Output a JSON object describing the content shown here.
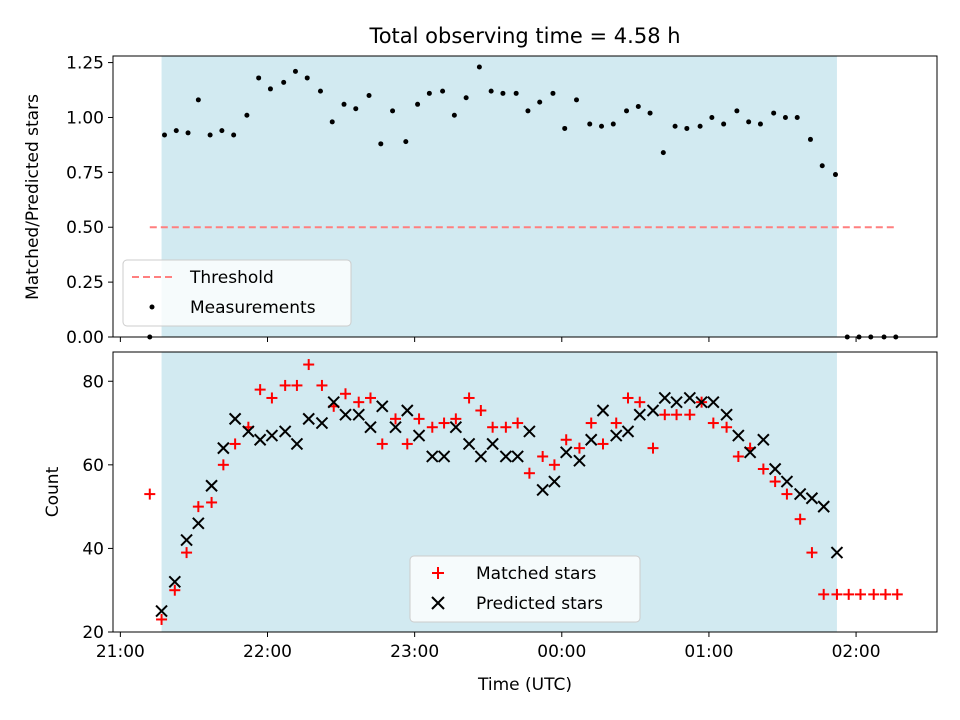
{
  "chart_data": [
    {
      "type": "scatter",
      "title": "Total observing time = 4.58 h",
      "ylabel": "Matched/Predicted stars",
      "xlabel": "",
      "ylim": [
        0,
        1.28
      ],
      "yticks": [
        "0.00",
        "0.25",
        "0.50",
        "0.75",
        "1.00",
        "1.25"
      ],
      "ytick_values": [
        0,
        0.25,
        0.5,
        0.75,
        1.0,
        1.25
      ],
      "x_range_hours": [
        20.95,
        26.55
      ],
      "xticks_hours": [
        21,
        22,
        23,
        24,
        25,
        26
      ],
      "shaded_interval_hours": [
        21.28,
        25.87
      ],
      "threshold": 0.5,
      "threshold_x_hours": [
        21.2,
        26.27
      ],
      "grid": false,
      "legend": {
        "placement": "lower-left",
        "entries": [
          "Threshold",
          "Measurements"
        ]
      },
      "series": [
        {
          "name": "Measurements",
          "x": [
            21.2,
            21.3,
            21.38,
            21.46,
            21.53,
            21.61,
            21.69,
            21.77,
            21.86,
            21.94,
            22.02,
            22.11,
            22.19,
            22.27,
            22.36,
            22.44,
            22.52,
            22.6,
            22.69,
            22.77,
            22.85,
            22.94,
            23.02,
            23.1,
            23.19,
            23.27,
            23.35,
            23.44,
            23.52,
            23.6,
            23.69,
            23.77,
            23.85,
            23.94,
            24.02,
            24.1,
            24.19,
            24.27,
            24.35,
            24.44,
            24.52,
            24.6,
            24.69,
            24.77,
            24.85,
            24.94,
            25.02,
            25.1,
            25.19,
            25.27,
            25.35,
            25.44,
            25.52,
            25.6,
            25.69,
            25.77,
            25.86,
            25.94,
            26.02,
            26.1,
            26.19,
            26.27
          ],
          "values": [
            0.0,
            0.92,
            0.94,
            0.93,
            1.08,
            0.92,
            0.94,
            0.92,
            1.01,
            1.18,
            1.13,
            1.16,
            1.21,
            1.18,
            1.12,
            0.98,
            1.06,
            1.04,
            1.1,
            0.88,
            1.03,
            0.89,
            1.06,
            1.11,
            1.12,
            1.01,
            1.09,
            1.23,
            1.12,
            1.11,
            1.11,
            1.03,
            1.07,
            1.11,
            0.95,
            1.08,
            0.97,
            0.96,
            0.97,
            1.03,
            1.05,
            1.02,
            0.84,
            0.96,
            0.95,
            0.96,
            1.0,
            0.97,
            1.03,
            0.98,
            0.97,
            1.02,
            1.0,
            1.0,
            0.9,
            0.78,
            0.74,
            0.0,
            0.0,
            0.0,
            0.0,
            0.0
          ]
        }
      ]
    },
    {
      "type": "scatter",
      "title": "",
      "ylabel": "Count",
      "xlabel": "Time (UTC)",
      "ylim": [
        20,
        87
      ],
      "yticks": [
        "20",
        "40",
        "60",
        "80"
      ],
      "ytick_values": [
        20,
        40,
        60,
        80
      ],
      "x_range_hours": [
        20.95,
        26.55
      ],
      "xticks": [
        "21:00",
        "22:00",
        "23:00",
        "00:00",
        "01:00",
        "02:00"
      ],
      "xticks_hours": [
        21,
        22,
        23,
        24,
        25,
        26
      ],
      "shaded_interval_hours": [
        21.28,
        25.87
      ],
      "grid": false,
      "legend": {
        "placement": "bottom-center",
        "entries": [
          "Matched stars",
          "Predicted stars"
        ]
      },
      "series": [
        {
          "name": "Matched stars",
          "color": "#ff0000",
          "marker": "plus",
          "x": [
            21.2,
            21.28,
            21.37,
            21.45,
            21.53,
            21.62,
            21.7,
            21.78,
            21.87,
            21.95,
            22.03,
            22.12,
            22.2,
            22.28,
            22.37,
            22.45,
            22.53,
            22.62,
            22.7,
            22.78,
            22.87,
            22.95,
            23.03,
            23.12,
            23.2,
            23.28,
            23.37,
            23.45,
            23.53,
            23.62,
            23.7,
            23.78,
            23.87,
            23.95,
            24.03,
            24.12,
            24.2,
            24.28,
            24.37,
            24.45,
            24.53,
            24.62,
            24.7,
            24.78,
            24.87,
            24.95,
            25.03,
            25.12,
            25.2,
            25.28,
            25.37,
            25.45,
            25.53,
            25.62,
            25.7,
            25.78,
            25.87,
            25.95,
            26.03,
            26.12,
            26.2,
            26.28
          ],
          "values": [
            53,
            23,
            30,
            39,
            50,
            51,
            60,
            65,
            69,
            78,
            76,
            79,
            79,
            84,
            79,
            74,
            77,
            75,
            76,
            65,
            71,
            65,
            71,
            69,
            70,
            71,
            76,
            73,
            69,
            69,
            70,
            58,
            62,
            60,
            66,
            64,
            70,
            65,
            70,
            76,
            75,
            64,
            72,
            72,
            72,
            75,
            70,
            69,
            62,
            64,
            59,
            56,
            53,
            47,
            39,
            29,
            29,
            29,
            29,
            29,
            29,
            29
          ]
        },
        {
          "name": "Predicted stars",
          "color": "#000000",
          "marker": "x",
          "x": [
            21.28,
            21.37,
            21.45,
            21.53,
            21.62,
            21.7,
            21.78,
            21.87,
            21.95,
            22.03,
            22.12,
            22.2,
            22.28,
            22.37,
            22.45,
            22.53,
            22.62,
            22.7,
            22.78,
            22.87,
            22.95,
            23.03,
            23.12,
            23.2,
            23.28,
            23.37,
            23.45,
            23.53,
            23.62,
            23.7,
            23.78,
            23.87,
            23.95,
            24.03,
            24.12,
            24.2,
            24.28,
            24.37,
            24.45,
            24.53,
            24.62,
            24.7,
            24.78,
            24.87,
            24.95,
            25.03,
            25.12,
            25.2,
            25.28,
            25.37,
            25.45,
            25.53,
            25.62,
            25.7,
            25.78,
            25.87
          ],
          "values": [
            25,
            32,
            42,
            46,
            55,
            64,
            71,
            68,
            66,
            67,
            68,
            65,
            71,
            70,
            75,
            72,
            72,
            69,
            74,
            69,
            73,
            67,
            62,
            62,
            69,
            65,
            62,
            65,
            62,
            62,
            68,
            54,
            56,
            63,
            61,
            66,
            73,
            67,
            68,
            72,
            73,
            76,
            75,
            76,
            75,
            75,
            72,
            67,
            63,
            66,
            59,
            56,
            53,
            52,
            50,
            39
          ]
        }
      ]
    }
  ],
  "colors": {
    "shade": "#add8e6",
    "threshold": "#ff7f7f",
    "measurements": "#000000",
    "matched": "#ff0000",
    "predicted": "#000000"
  }
}
